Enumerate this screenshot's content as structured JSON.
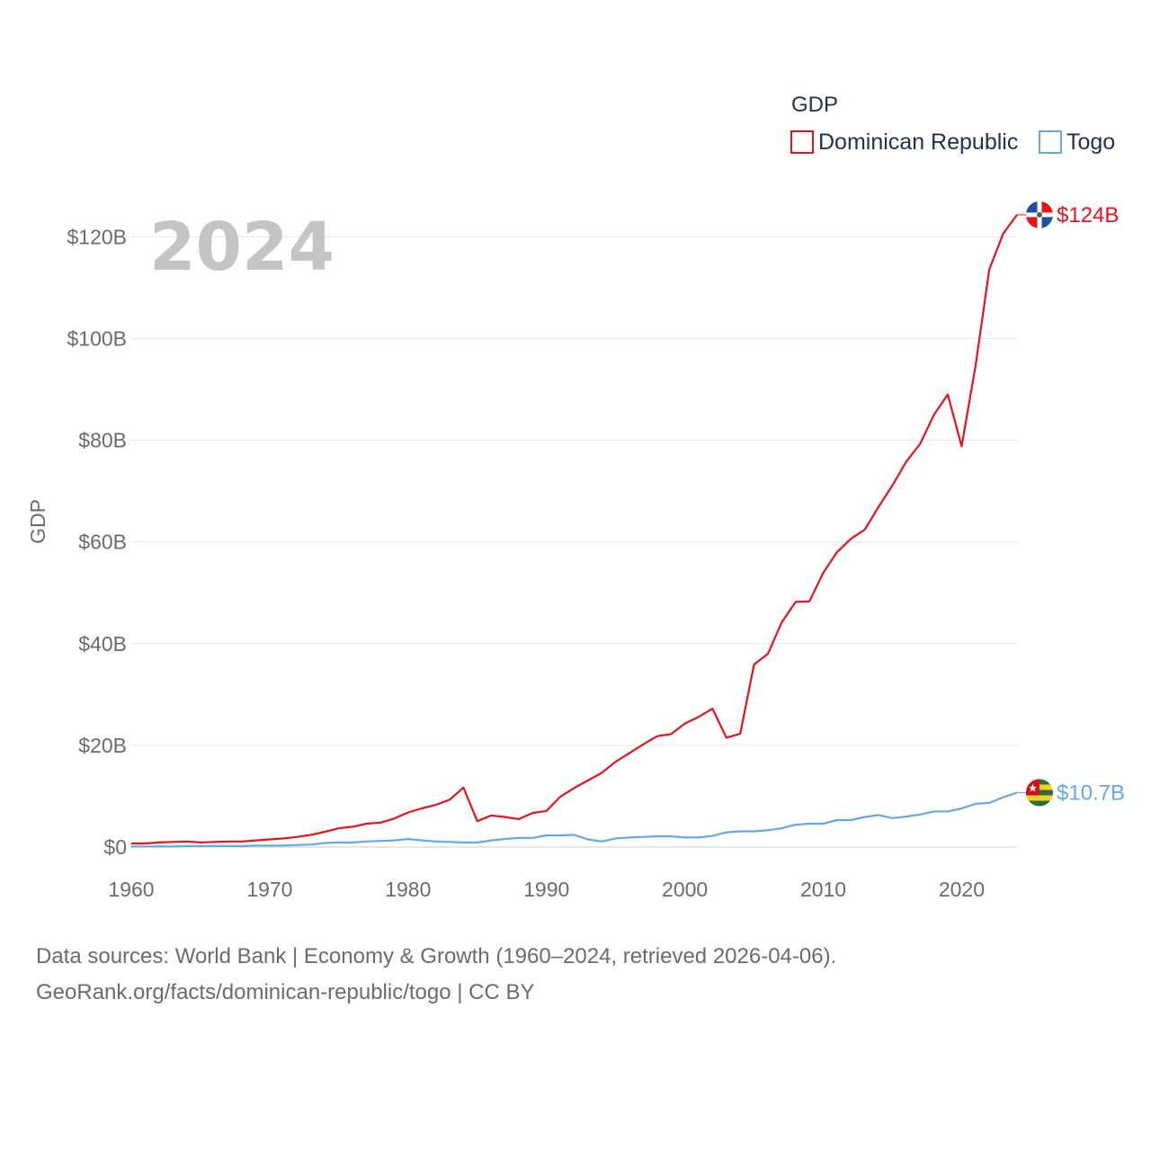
{
  "chart_data": {
    "type": "line",
    "title": "",
    "year_label": "2024",
    "xlabel": "",
    "ylabel": "GDP",
    "xlim": [
      1960,
      2024
    ],
    "ylim": [
      0,
      128
    ],
    "x_ticks": [
      1960,
      1970,
      1980,
      1990,
      2000,
      2010,
      2020
    ],
    "x_tick_labels": [
      "1960",
      "1970",
      "1980",
      "1990",
      "2000",
      "2010",
      "2020"
    ],
    "y_ticks": [
      0,
      20,
      40,
      60,
      80,
      100,
      120
    ],
    "y_tick_labels": [
      "$0",
      "$20B",
      "$40B",
      "$60B",
      "$80B",
      "$100B",
      "$120B"
    ],
    "unit": "billion USD",
    "grid": true,
    "legend": {
      "title": "GDP",
      "position": "top-right",
      "entries": [
        "Dominican Republic",
        "Togo"
      ]
    },
    "x": [
      1960,
      1961,
      1962,
      1963,
      1964,
      1965,
      1966,
      1967,
      1968,
      1969,
      1970,
      1971,
      1972,
      1973,
      1974,
      1975,
      1976,
      1977,
      1978,
      1979,
      1980,
      1981,
      1982,
      1983,
      1984,
      1985,
      1986,
      1987,
      1988,
      1989,
      1990,
      1991,
      1992,
      1993,
      1994,
      1995,
      1996,
      1997,
      1998,
      1999,
      2000,
      2001,
      2002,
      2003,
      2004,
      2005,
      2006,
      2007,
      2008,
      2009,
      2010,
      2011,
      2012,
      2013,
      2014,
      2015,
      2016,
      2017,
      2018,
      2019,
      2020,
      2021,
      2022,
      2023,
      2024
    ],
    "series": [
      {
        "name": "Dominican Republic",
        "color": "#e8121a",
        "end_label": "$124B",
        "flag": "dominican-republic-flag-icon",
        "values": [
          0.7,
          0.7,
          0.9,
          1.0,
          1.1,
          0.9,
          1.0,
          1.1,
          1.1,
          1.3,
          1.5,
          1.7,
          2.0,
          2.4,
          3.0,
          3.7,
          4.0,
          4.6,
          4.8,
          5.6,
          6.8,
          7.6,
          8.3,
          9.3,
          11.7,
          5.1,
          6.2,
          5.9,
          5.5,
          6.7,
          7.1,
          9.9,
          11.6,
          13.1,
          14.6,
          16.8,
          18.5,
          20.2,
          21.8,
          22.2,
          24.3,
          25.6,
          27.2,
          21.5,
          22.3,
          35.9,
          38.0,
          44.2,
          48.2,
          48.3,
          53.9,
          58.0,
          60.6,
          62.4,
          66.9,
          71.1,
          75.8,
          79.3,
          85.0,
          89.0,
          78.8,
          94.5,
          113.6,
          120.6,
          124.3
        ]
      },
      {
        "name": "Togo",
        "color": "#63a8e8",
        "end_label": "$10.7B",
        "flag": "togo-flag-icon",
        "values": [
          0.1,
          0.1,
          0.1,
          0.1,
          0.2,
          0.2,
          0.2,
          0.2,
          0.2,
          0.3,
          0.3,
          0.3,
          0.4,
          0.5,
          0.8,
          0.9,
          0.9,
          1.1,
          1.2,
          1.3,
          1.6,
          1.3,
          1.1,
          1.0,
          0.9,
          0.9,
          1.3,
          1.6,
          1.8,
          1.8,
          2.3,
          2.3,
          2.4,
          1.5,
          1.1,
          1.7,
          1.9,
          2.0,
          2.1,
          2.1,
          1.9,
          1.9,
          2.2,
          2.9,
          3.1,
          3.1,
          3.3,
          3.7,
          4.4,
          4.6,
          4.6,
          5.3,
          5.3,
          5.9,
          6.3,
          5.7,
          6.0,
          6.4,
          7.0,
          7.0,
          7.6,
          8.5,
          8.7,
          9.8,
          10.7
        ]
      }
    ]
  },
  "footer": {
    "line1": "Data sources: World Bank | Economy & Growth (1960–2024, retrieved 2026-04-06).",
    "line2": "GeoRank.org/facts/dominican-republic/togo | CC BY"
  },
  "colors": {
    "gridline": "#e8e8e8",
    "axis": "#cccccc",
    "dr_blue": "#1d4ea1",
    "dr_red": "#e8121a",
    "togo_green": "#2c6e3a",
    "togo_yellow": "#f4d11b",
    "togo_red": "#d2101a"
  }
}
